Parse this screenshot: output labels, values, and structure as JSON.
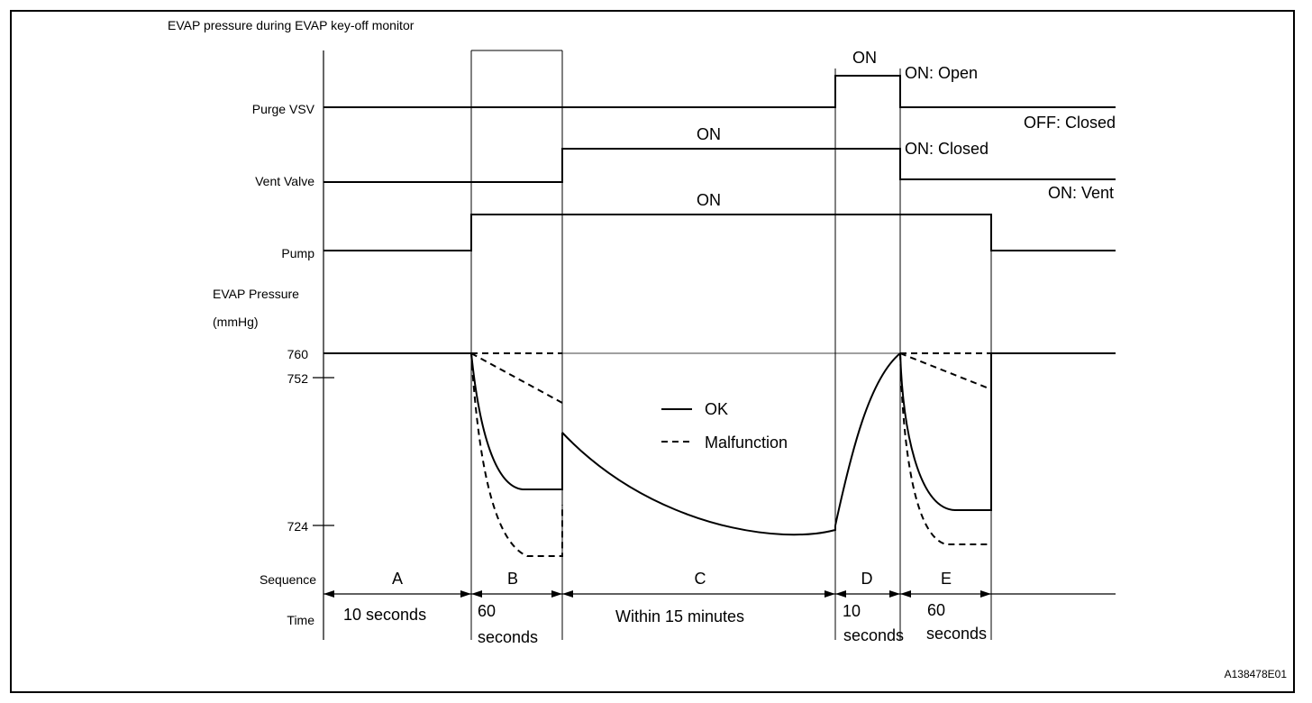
{
  "title": "EVAP pressure during EVAP key-off monitor",
  "figure_id": "A138478E01",
  "row_labels": {
    "purge": "Purge VSV",
    "vent": "Vent Valve",
    "pump": "Pump",
    "pressure": "EVAP Pressure",
    "pressure_unit": "(mmHg)",
    "sequence": "Sequence",
    "time": "Time"
  },
  "pressure_ticks": [
    "760",
    "752",
    "724"
  ],
  "state_labels": {
    "purge_on": "ON",
    "purge_on_state": "ON: Open",
    "purge_off_state": "OFF: Closed",
    "vent_on": "ON",
    "vent_on_state": "ON: Closed",
    "vent_off_state": "ON: Vent",
    "pump_on": "ON"
  },
  "legend": {
    "ok": "OK",
    "malfunction": "Malfunction"
  },
  "sequences": [
    {
      "letter": "A",
      "time": "10 seconds"
    },
    {
      "letter": "B",
      "time_line1": "60",
      "time_line2": "seconds"
    },
    {
      "letter": "C",
      "time": "Within 15 minutes"
    },
    {
      "letter": "D",
      "time_line1": "10",
      "time_line2": "seconds"
    },
    {
      "letter": "E",
      "time_line1": "60",
      "time_line2": "seconds"
    }
  ]
}
